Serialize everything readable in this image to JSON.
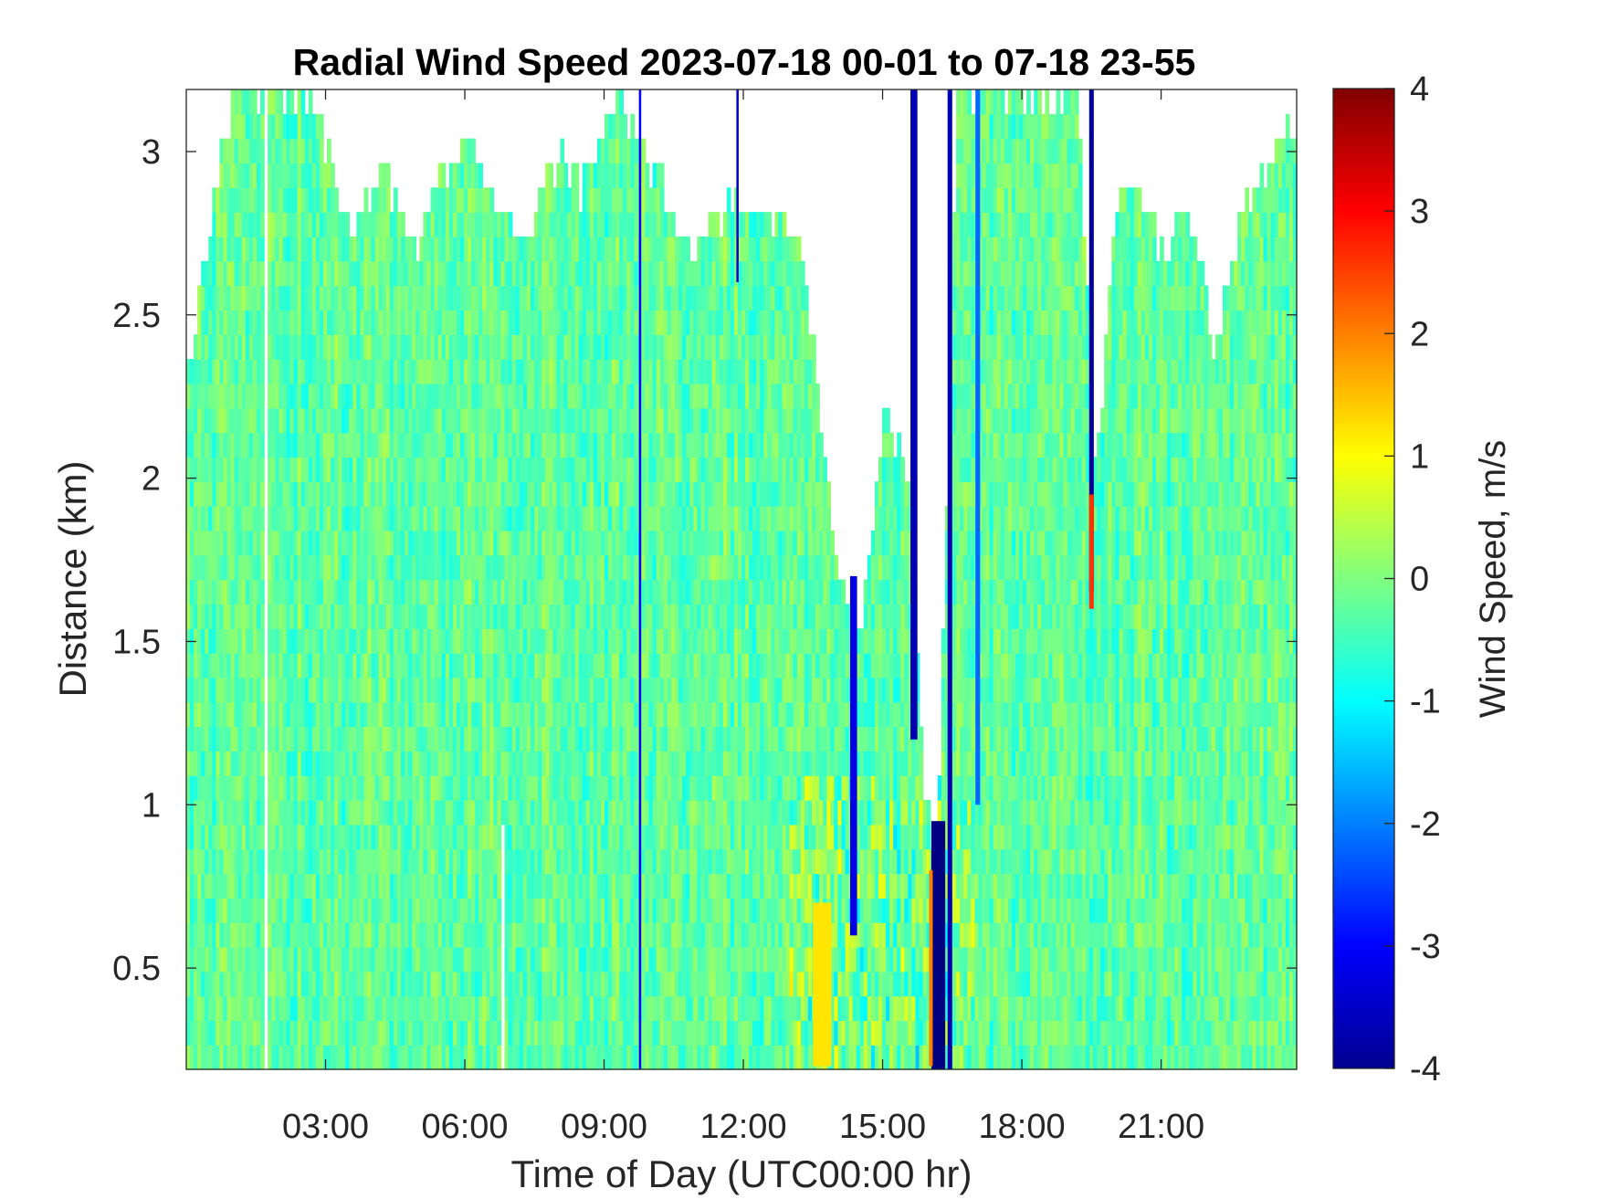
{
  "chart_data": {
    "type": "heatmap",
    "title": "Radial Wind Speed 2023-07-18 00-01 to 07-18 23-55",
    "xlabel": "Time of Day (UTC00:00 hr)",
    "ylabel": "Distance (km)",
    "colorbar_label": "Wind Speed, m/s",
    "colormap": "jet",
    "x_unit": "hours",
    "xlim": [
      0.0,
      23.92
    ],
    "ylim": [
      0.19,
      3.19
    ],
    "clim": [
      -4,
      4
    ],
    "x_ticks": [
      {
        "value": 3,
        "label": "03:00"
      },
      {
        "value": 6,
        "label": "06:00"
      },
      {
        "value": 9,
        "label": "09:00"
      },
      {
        "value": 12,
        "label": "12:00"
      },
      {
        "value": 15,
        "label": "15:00"
      },
      {
        "value": 18,
        "label": "18:00"
      },
      {
        "value": 21,
        "label": "21:00"
      }
    ],
    "y_ticks": [
      {
        "value": 0.5,
        "label": "0.5"
      },
      {
        "value": 1,
        "label": "1"
      },
      {
        "value": 1.5,
        "label": "1.5"
      },
      {
        "value": 2,
        "label": "2"
      },
      {
        "value": 2.5,
        "label": "2.5"
      },
      {
        "value": 3,
        "label": "3"
      }
    ],
    "colorbar_ticks": [
      {
        "value": 4,
        "label": "4"
      },
      {
        "value": 3,
        "label": "3"
      },
      {
        "value": 2,
        "label": "2"
      },
      {
        "value": 1,
        "label": "1"
      },
      {
        "value": 0,
        "label": "0"
      },
      {
        "value": -1,
        "label": "-1"
      },
      {
        "value": -2,
        "label": "-2"
      },
      {
        "value": -3,
        "label": "-3"
      },
      {
        "value": -4,
        "label": "-4"
      }
    ],
    "data_top_km": [
      {
        "t": 0.0,
        "top": 2.3
      },
      {
        "t": 1.0,
        "top": 3.19
      },
      {
        "t": 1.65,
        "top": 3.19
      },
      {
        "t": 2.5,
        "top": 3.19
      },
      {
        "t": 3.2,
        "top": 2.95
      },
      {
        "t": 3.6,
        "top": 2.75
      },
      {
        "t": 4.2,
        "top": 3.0
      },
      {
        "t": 4.8,
        "top": 2.7
      },
      {
        "t": 5.6,
        "top": 2.95
      },
      {
        "t": 6.2,
        "top": 3.05
      },
      {
        "t": 6.8,
        "top": 2.8
      },
      {
        "t": 7.3,
        "top": 2.72
      },
      {
        "t": 8.0,
        "top": 3.0
      },
      {
        "t": 8.5,
        "top": 2.9
      },
      {
        "t": 9.3,
        "top": 3.19
      },
      {
        "t": 10.2,
        "top": 2.9
      },
      {
        "t": 11.0,
        "top": 2.65
      },
      {
        "t": 11.6,
        "top": 2.85
      },
      {
        "t": 12.3,
        "top": 2.8
      },
      {
        "t": 13.2,
        "top": 2.75
      },
      {
        "t": 13.6,
        "top": 2.3
      },
      {
        "t": 14.0,
        "top": 1.75
      },
      {
        "t": 14.5,
        "top": 1.5
      },
      {
        "t": 15.0,
        "top": 2.2
      },
      {
        "t": 15.6,
        "top": 2.0
      },
      {
        "t": 15.9,
        "top": 1.0
      },
      {
        "t": 16.2,
        "top": 0.9
      },
      {
        "t": 16.6,
        "top": 3.19
      },
      {
        "t": 17.5,
        "top": 3.19
      },
      {
        "t": 18.5,
        "top": 3.19
      },
      {
        "t": 19.2,
        "top": 3.19
      },
      {
        "t": 19.6,
        "top": 2.0
      },
      {
        "t": 20.0,
        "top": 2.8
      },
      {
        "t": 20.4,
        "top": 2.95
      },
      {
        "t": 21.0,
        "top": 2.7
      },
      {
        "t": 21.6,
        "top": 2.8
      },
      {
        "t": 22.2,
        "top": 2.4
      },
      {
        "t": 22.8,
        "top": 2.85
      },
      {
        "t": 23.4,
        "top": 3.0
      },
      {
        "t": 23.92,
        "top": 3.05
      }
    ],
    "gaps": [
      {
        "t_start": 1.65,
        "t_end": 1.75,
        "top": 3.19
      },
      {
        "t_start": 6.75,
        "t_end": 6.85,
        "top": 0.95
      },
      {
        "t_start": 16.0,
        "t_end": 16.2,
        "top": 3.19,
        "bottom": 1.0
      }
    ],
    "features": [
      {
        "t_start": 16.05,
        "t_end": 16.35,
        "bottom": 0.19,
        "top": 0.95,
        "speed": -4.0
      },
      {
        "t_start": 16.4,
        "t_end": 16.5,
        "bottom": 0.19,
        "top": 3.19,
        "speed": -3.6
      },
      {
        "t_start": 15.6,
        "t_end": 15.75,
        "bottom": 1.2,
        "top": 3.19,
        "speed": -3.6
      },
      {
        "t_start": 14.3,
        "t_end": 14.45,
        "bottom": 0.6,
        "top": 1.7,
        "speed": -3.2
      },
      {
        "t_start": 19.45,
        "t_end": 19.55,
        "bottom": 1.65,
        "top": 3.19,
        "speed": -3.8
      },
      {
        "t_start": 19.45,
        "t_end": 19.55,
        "bottom": 1.6,
        "top": 1.95,
        "speed": 2.6
      },
      {
        "t_start": 16.0,
        "t_end": 16.08,
        "bottom": 0.2,
        "top": 0.8,
        "speed": 2.0
      },
      {
        "t_start": 13.5,
        "t_end": 13.9,
        "bottom": 0.2,
        "top": 0.7,
        "speed": 1.2
      },
      {
        "t_start": 9.75,
        "t_end": 9.8,
        "bottom": 0.19,
        "top": 3.19,
        "speed": -3.0
      },
      {
        "t_start": 11.85,
        "t_end": 11.9,
        "bottom": 2.6,
        "top": 3.19,
        "speed": -3.4
      },
      {
        "t_start": 17.0,
        "t_end": 17.1,
        "bottom": 1.0,
        "top": 3.19,
        "speed": -2.2
      }
    ]
  }
}
